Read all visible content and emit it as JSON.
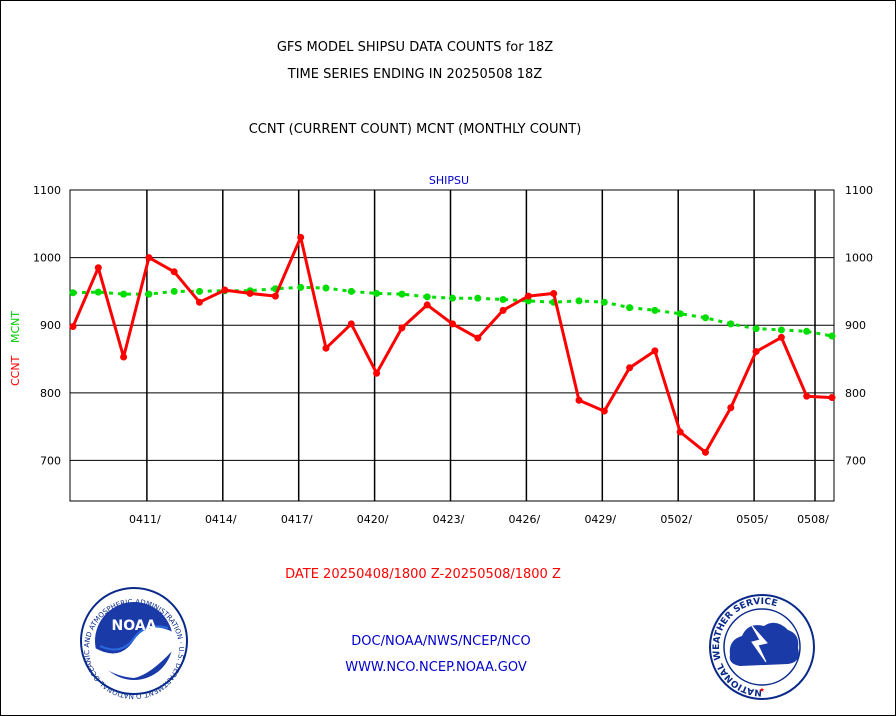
{
  "header": {
    "title_line1": "GFS MODEL SHIPSU DATA COUNTS for 18Z",
    "title_line2": "TIME SERIES ENDING IN 20250508 18Z",
    "subtitle": "CCNT (CURRENT COUNT) MCNT (MONTHLY COUNT)"
  },
  "footer": {
    "date_range": "DATE 20250408/1800 Z-20250508/1800 Z",
    "org_path": "DOC/NOAA/NWS/NCEP/NCO",
    "website": "WWW.NCO.NCEP.NOAA.GOV"
  },
  "logos": {
    "noaa_text": "NOAA",
    "noaa_ring_text": "NATIONAL OCEANIC AND ATMOSPHERIC ADMINISTRATION · U.S. DEPARTMENT OF COMMERCE ·",
    "nws_ring_text": "NATIONAL WEATHER SERVICE"
  },
  "colors": {
    "ccnt": "#ff0000",
    "mcnt": "#00dd00",
    "plot_title": "#0000cc",
    "footer_text": "#0000cc",
    "date_text": "#ff0000"
  },
  "chart_data": {
    "type": "line",
    "title": "SHIPSU",
    "ylabel_ccnt": "CCNT",
    "ylabel_mcnt": "MCNT",
    "ylim": [
      640,
      1100
    ],
    "yticks": [
      700,
      800,
      900,
      1000,
      1100
    ],
    "ytick_labels": [
      "700",
      "800",
      "900",
      "1000",
      "1100"
    ],
    "x": [
      "20250408",
      "20250409",
      "20250410",
      "20250411",
      "20250412",
      "20250413",
      "20250414",
      "20250415",
      "20250416",
      "20250417",
      "20250418",
      "20250419",
      "20250420",
      "20250421",
      "20250422",
      "20250423",
      "20250424",
      "20250425",
      "20250426",
      "20250427",
      "20250428",
      "20250429",
      "20250430",
      "20250501",
      "20250502",
      "20250503",
      "20250504",
      "20250505",
      "20250506",
      "20250507",
      "20250508"
    ],
    "xtick_labels": [
      "0411/",
      "0414/",
      "0417/",
      "0420/",
      "0423/",
      "0426/",
      "0429/",
      "0502/",
      "0505/",
      "0508/"
    ],
    "xtick_index": [
      3,
      6,
      9,
      12,
      15,
      18,
      21,
      24,
      27,
      30
    ],
    "grid": true,
    "series": [
      {
        "name": "CCNT",
        "values": [
          898,
          985,
          853,
          1000,
          979,
          934,
          952,
          947,
          943,
          1030,
          866,
          902,
          829,
          896,
          930,
          902,
          881,
          922,
          943,
          947,
          789,
          773,
          837,
          862,
          742,
          712,
          778,
          861,
          882,
          795,
          793
        ]
      },
      {
        "name": "MCNT",
        "values": [
          948,
          949,
          946,
          946,
          950,
          950,
          951,
          951,
          954,
          956,
          955,
          950,
          947,
          946,
          942,
          940,
          940,
          938,
          936,
          934,
          936,
          934,
          926,
          922,
          917,
          911,
          902,
          895,
          893,
          891,
          884
        ]
      }
    ]
  }
}
